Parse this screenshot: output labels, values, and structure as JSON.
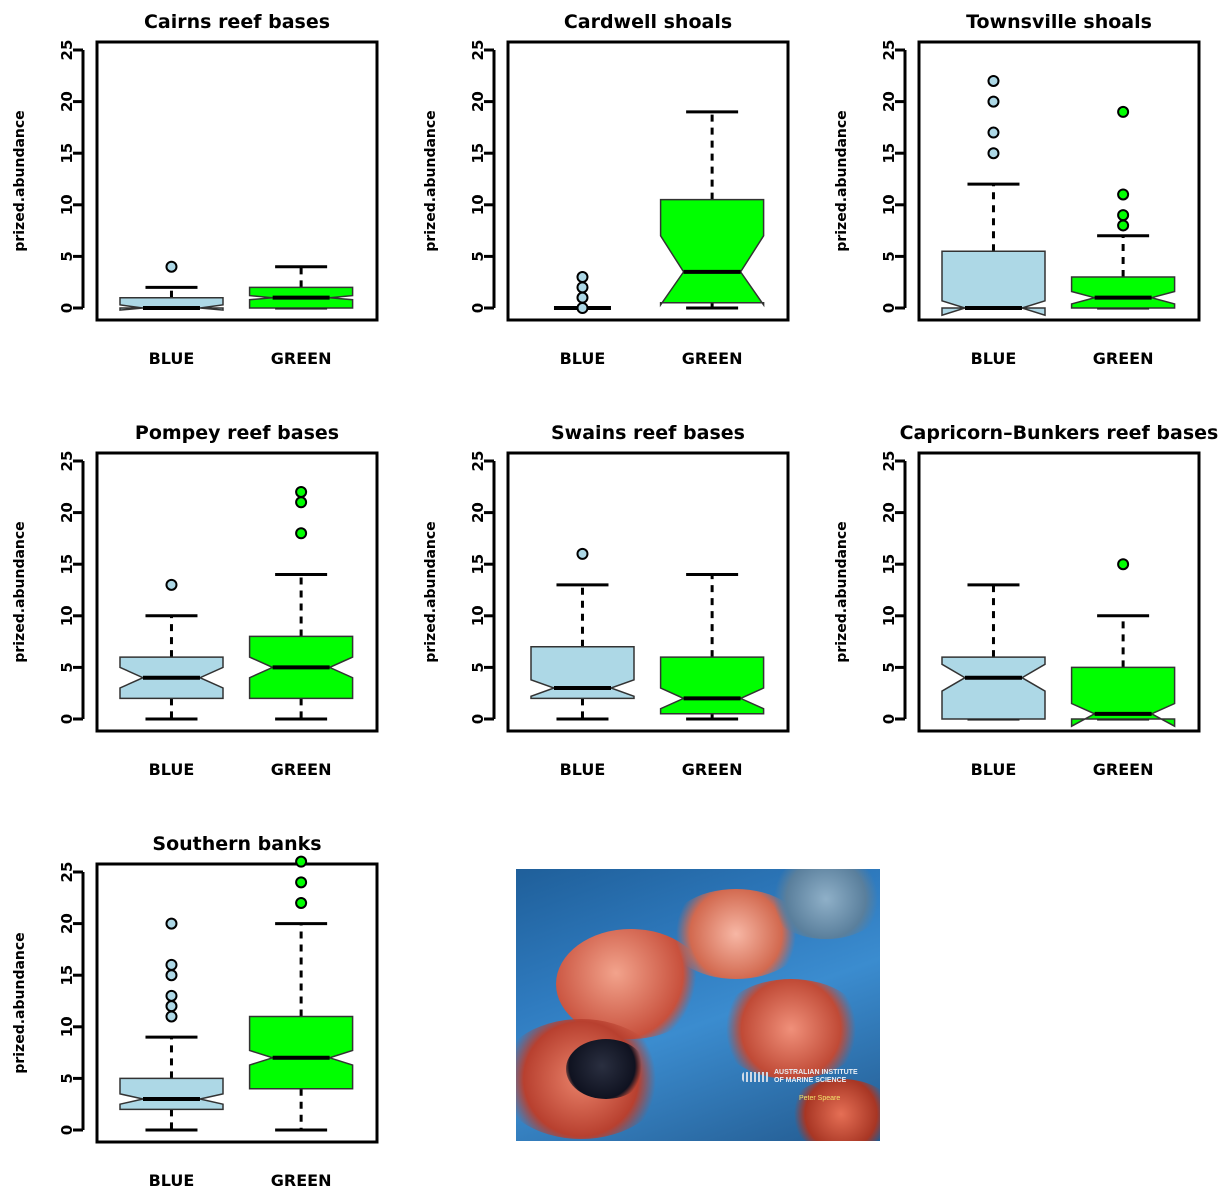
{
  "chart_data": [
    {
      "type": "boxplot",
      "title": "Cairns reef bases",
      "ylabel": "prized.abundance",
      "ylim": [
        0,
        25
      ],
      "yticks": [
        0,
        5,
        10,
        15,
        20,
        25
      ],
      "categories": [
        "BLUE",
        "GREEN"
      ],
      "boxes": [
        {
          "q1": 0,
          "median": 0,
          "q3": 1,
          "whisker_low": 0,
          "whisker_high": 2,
          "notch_low": -0.2,
          "notch_high": 0.3,
          "outliers": [
            4
          ]
        },
        {
          "q1": 0,
          "median": 1,
          "q3": 2,
          "whisker_low": 0,
          "whisker_high": 4,
          "notch_low": 0.8,
          "notch_high": 1.2,
          "outliers": []
        }
      ]
    },
    {
      "type": "boxplot",
      "title": "Cardwell shoals",
      "ylabel": "prized.abundance",
      "ylim": [
        0,
        25
      ],
      "yticks": [
        0,
        5,
        10,
        15,
        20,
        25
      ],
      "categories": [
        "BLUE",
        "GREEN"
      ],
      "boxes": [
        {
          "q1": 0,
          "median": 0,
          "q3": 0,
          "whisker_low": 0,
          "whisker_high": 0,
          "notch_low": 0,
          "notch_high": 0,
          "outliers": [
            0,
            1,
            2,
            3
          ]
        },
        {
          "q1": 0.5,
          "median": 3.5,
          "q3": 10.5,
          "whisker_low": 0,
          "whisker_high": 19,
          "notch_low": 0.3,
          "notch_high": 7,
          "outliers": []
        }
      ]
    },
    {
      "type": "boxplot",
      "title": "Townsville shoals",
      "ylabel": "prized.abundance",
      "ylim": [
        0,
        25
      ],
      "yticks": [
        0,
        5,
        10,
        15,
        20,
        25
      ],
      "categories": [
        "BLUE",
        "GREEN"
      ],
      "boxes": [
        {
          "q1": 0,
          "median": 0,
          "q3": 5.5,
          "whisker_low": 0,
          "whisker_high": 12,
          "notch_low": -0.7,
          "notch_high": 0.7,
          "outliers": [
            15,
            17,
            20,
            22
          ]
        },
        {
          "q1": 0,
          "median": 1,
          "q3": 3,
          "whisker_low": 0,
          "whisker_high": 7,
          "notch_low": 0.4,
          "notch_high": 1.6,
          "outliers": [
            8,
            9,
            11,
            19
          ]
        }
      ]
    },
    {
      "type": "boxplot",
      "title": "Pompey reef bases",
      "ylabel": "prized.abundance",
      "ylim": [
        0,
        25
      ],
      "yticks": [
        0,
        5,
        10,
        15,
        20,
        25
      ],
      "categories": [
        "BLUE",
        "GREEN"
      ],
      "boxes": [
        {
          "q1": 2,
          "median": 4,
          "q3": 6,
          "whisker_low": 0,
          "whisker_high": 10,
          "notch_low": 3,
          "notch_high": 5,
          "outliers": [
            13
          ]
        },
        {
          "q1": 2,
          "median": 5,
          "q3": 8,
          "whisker_low": 0,
          "whisker_high": 14,
          "notch_low": 4,
          "notch_high": 6,
          "outliers": [
            18,
            21,
            22
          ]
        }
      ]
    },
    {
      "type": "boxplot",
      "title": "Swains reef bases",
      "ylabel": "prized.abundance",
      "ylim": [
        0,
        25
      ],
      "yticks": [
        0,
        5,
        10,
        15,
        20,
        25
      ],
      "categories": [
        "BLUE",
        "GREEN"
      ],
      "boxes": [
        {
          "q1": 2,
          "median": 3,
          "q3": 7,
          "whisker_low": 0,
          "whisker_high": 13,
          "notch_low": 2.2,
          "notch_high": 3.8,
          "outliers": [
            16
          ]
        },
        {
          "q1": 0.5,
          "median": 2,
          "q3": 6,
          "whisker_low": 0,
          "whisker_high": 14,
          "notch_low": 1,
          "notch_high": 3,
          "outliers": []
        }
      ]
    },
    {
      "type": "boxplot",
      "title": "Capricorn–Bunkers reef bases",
      "ylabel": "prized.abundance",
      "ylim": [
        0,
        25
      ],
      "yticks": [
        0,
        5,
        10,
        15,
        20,
        25
      ],
      "categories": [
        "BLUE",
        "GREEN"
      ],
      "boxes": [
        {
          "q1": 0,
          "median": 4,
          "q3": 6,
          "whisker_low": 0,
          "whisker_high": 13,
          "notch_low": 2.7,
          "notch_high": 5.3,
          "outliers": []
        },
        {
          "q1": 0,
          "median": 0.5,
          "q3": 5,
          "whisker_low": 0,
          "whisker_high": 10,
          "notch_low": -0.7,
          "notch_high": 1.5,
          "outliers": [
            15
          ]
        }
      ]
    },
    {
      "type": "boxplot",
      "title": "Southern banks",
      "ylabel": "prized.abundance",
      "ylim": [
        0,
        25
      ],
      "yticks": [
        0,
        5,
        10,
        15,
        20,
        25
      ],
      "categories": [
        "BLUE",
        "GREEN"
      ],
      "boxes": [
        {
          "q1": 2,
          "median": 3,
          "q3": 5,
          "whisker_low": 0,
          "whisker_high": 9,
          "notch_low": 2.5,
          "notch_high": 3.5,
          "outliers": [
            11,
            12,
            13,
            15,
            16,
            20
          ]
        },
        {
          "q1": 4,
          "median": 7,
          "q3": 11,
          "whisker_low": 0,
          "whisker_high": 20,
          "notch_low": 6.3,
          "notch_high": 7.7,
          "outliers": [
            22,
            24,
            26
          ]
        }
      ]
    }
  ],
  "colors": {
    "BLUE": "#add8e6",
    "GREEN": "#00ff00"
  },
  "photo": {
    "caption_line1": "AUSTRALIAN INSTITUTE",
    "caption_line2": "OF MARINE SCIENCE",
    "credit": "Peter Speare"
  }
}
